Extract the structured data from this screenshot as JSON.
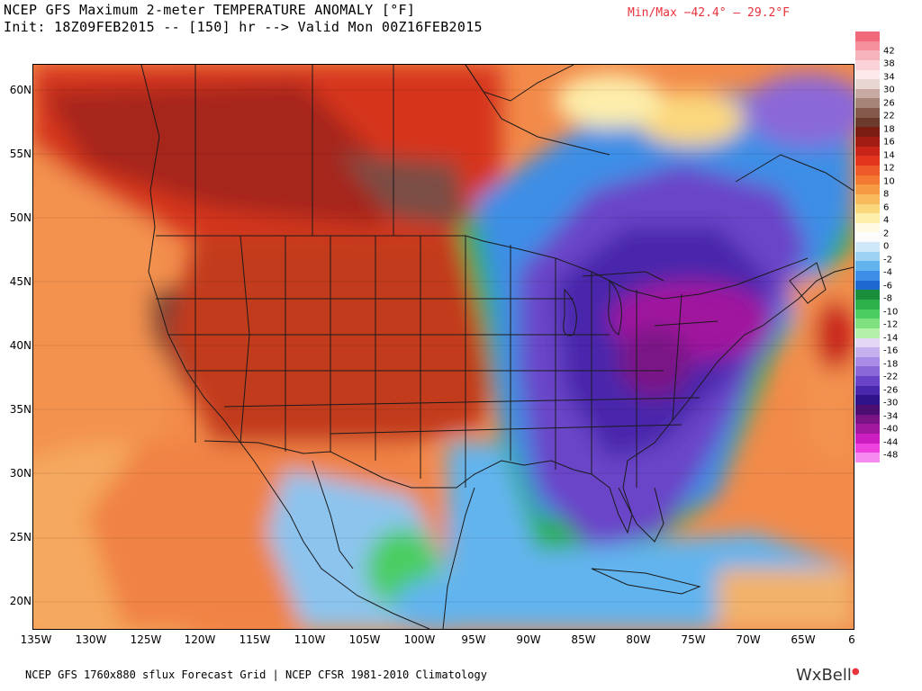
{
  "header": {
    "title_line1": "NCEP GFS Maximum 2-meter TEMPERATURE ANOMALY [°F]",
    "title_line2": "Init: 18Z09FEB2015 -- [150] hr --> Valid Mon 00Z16FEB2015",
    "minmax": "Min/Max −42.4° –  29.2°F"
  },
  "map": {
    "lat_labels": [
      "60N",
      "55N",
      "50N",
      "45N",
      "40N",
      "35N",
      "30N",
      "25N",
      "20N"
    ],
    "lon_labels": [
      "135W",
      "130W",
      "125W",
      "120W",
      "115W",
      "110W",
      "105W",
      "100W",
      "95W",
      "90W",
      "85W",
      "80W",
      "75W",
      "70W",
      "65W",
      "6"
    ],
    "projection": "lat-lon",
    "regions": [
      {
        "name": "western-warm-anomaly",
        "color": "#7a4234"
      },
      {
        "name": "plains-warm-anomaly",
        "color": "#c23a1c"
      },
      {
        "name": "eastern-cold-anomaly",
        "color": "#6a3cc8"
      },
      {
        "name": "northeast-extreme-cold",
        "color": "#a0189e"
      }
    ]
  },
  "colorbar": {
    "labels": [
      "42",
      "38",
      "34",
      "30",
      "26",
      "22",
      "18",
      "16",
      "14",
      "12",
      "10",
      "8",
      "6",
      "4",
      "2",
      "0",
      "-2",
      "-4",
      "-6",
      "-8",
      "-10",
      "-12",
      "-14",
      "-16",
      "-18",
      "-22",
      "-26",
      "-30",
      "-34",
      "-40",
      "-44",
      "-48"
    ],
    "colors": [
      "#f06a7c",
      "#f48f9b",
      "#f7b3ba",
      "#fbd2d7",
      "#fde8ea",
      "#e7d6d2",
      "#c9aaa2",
      "#a78478",
      "#84584a",
      "#6c3a2c",
      "#7b1c12",
      "#a11d14",
      "#c8241a",
      "#e3351e",
      "#ef5a2a",
      "#f47a34",
      "#f69a44",
      "#f8ba5a",
      "#fbd77c",
      "#fdeeaa",
      "#fffbe2",
      "#fcfcfc",
      "#cfe8f8",
      "#9dd2f4",
      "#62b4ee",
      "#3c8ee6",
      "#1e68d2",
      "#1b8e3c",
      "#2bb04a",
      "#4ccd62",
      "#7ee07e",
      "#b4f0aa",
      "#e4d7f6",
      "#c6b0ee",
      "#a98ce6",
      "#8b68d8",
      "#6a44c8",
      "#4a28ac",
      "#2d128a",
      "#4c0e70",
      "#7a1486",
      "#a0189e",
      "#cc1ec0",
      "#ee42de",
      "#f68af0"
    ],
    "major_ticks": [
      "42",
      "38",
      "34",
      "30",
      "26",
      "22",
      "18",
      "16",
      "14",
      "12",
      "10",
      "8",
      "6",
      "4",
      "2",
      "0",
      "-2",
      "-4",
      "-6",
      "-8",
      "-10",
      "-12",
      "-14",
      "-16",
      "-18",
      "-22",
      "-26",
      "-30",
      "-34",
      "-40",
      "-44",
      "-48"
    ]
  },
  "footer": {
    "text": "NCEP GFS 1760x880 sflux Forecast Grid | NCEP CFSR 1981-2010 Climatology",
    "brand": "WxBell"
  }
}
